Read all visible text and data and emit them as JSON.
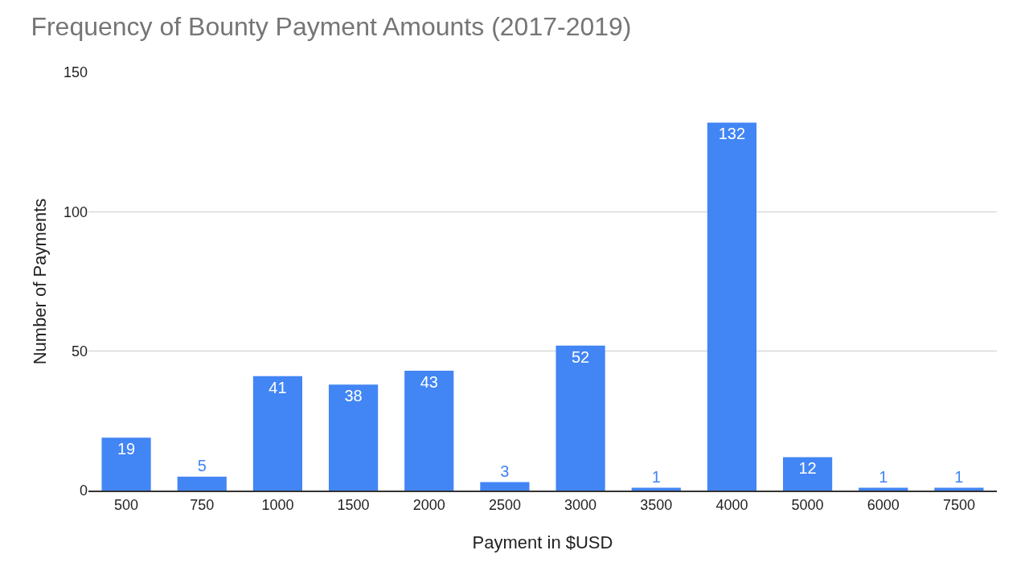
{
  "chart_data": {
    "type": "bar",
    "title": "Frequency of Bounty Payment Amounts (2017-2019)",
    "xlabel": "Payment in $USD",
    "ylabel": "Number of Payments",
    "categories": [
      "500",
      "750",
      "1000",
      "1500",
      "2000",
      "2500",
      "3000",
      "3500",
      "4000",
      "5000",
      "6000",
      "7500"
    ],
    "values": [
      19,
      5,
      41,
      38,
      43,
      3,
      52,
      1,
      132,
      12,
      1,
      1
    ],
    "color": "#4285f4",
    "ylim": [
      0,
      150
    ],
    "yticks": [
      0,
      50,
      100,
      150
    ],
    "grid": "y",
    "legend": false,
    "data_labels": true
  }
}
